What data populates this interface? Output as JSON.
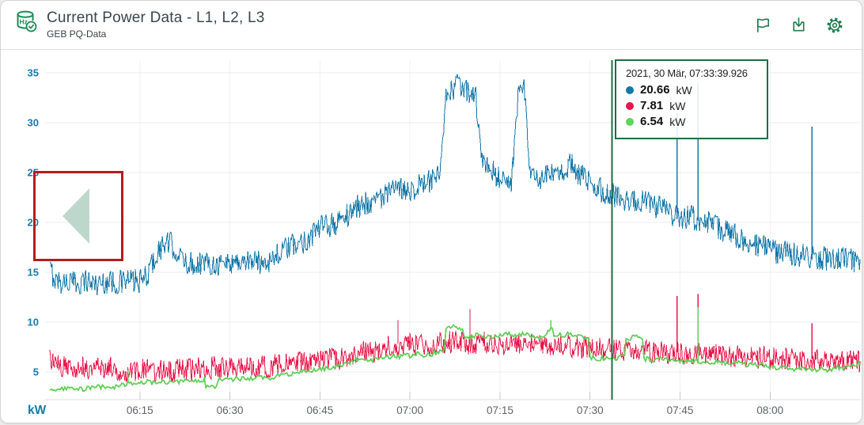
{
  "header": {
    "title": "Current Power Data - L1, L2, L3",
    "subtitle": "GEB PQ-Data",
    "icon_color": "#1e8a55",
    "action_icon_color": "#1e7e4f",
    "actions": [
      "flag",
      "download",
      "settings"
    ]
  },
  "tooltip": {
    "timestamp": "2021, 30 Mär, 07:33:39.926",
    "border_color": "#1b6e43",
    "rows": [
      {
        "series": "L1",
        "value": "20.66",
        "unit": "kW",
        "dot_color": "#1478a8"
      },
      {
        "series": "L2",
        "value": "7.81",
        "unit": "kW",
        "dot_color": "#e8174b"
      },
      {
        "series": "L3",
        "value": "6.54",
        "unit": "kW",
        "dot_color": "#5cd65c"
      }
    ]
  },
  "axes": {
    "y_unit_label": "kW",
    "y_label_color": "#1779ab",
    "x_label_color": "#5f6368"
  },
  "overlay": {
    "selection_box": {
      "border_color": "#b01e1e",
      "arrow_direction": "left",
      "arrow_color": "#b7d3c8"
    }
  },
  "chart_data": {
    "type": "line",
    "title": "Current Power Data - L1, L2, L3",
    "unit": "kW",
    "grid": true,
    "x_start_label": "06:00",
    "x_span_minutes": 135,
    "x_ticks": [
      {
        "m": 15,
        "label": "06:15"
      },
      {
        "m": 30,
        "label": "06:30"
      },
      {
        "m": 45,
        "label": "06:45"
      },
      {
        "m": 60,
        "label": "07:00"
      },
      {
        "m": 75,
        "label": "07:15"
      },
      {
        "m": 90,
        "label": "07:30"
      },
      {
        "m": 105,
        "label": "07:45"
      },
      {
        "m": 120,
        "label": "08:00"
      }
    ],
    "y_ticks": [
      5,
      10,
      15,
      20,
      25,
      30,
      35
    ],
    "ylim": [
      2,
      36.5
    ],
    "crosshair": {
      "time": "07:33:39.926",
      "x_minutes": 93.665,
      "color": "#1b6e43"
    },
    "series": [
      {
        "name": "L1",
        "color": "#1478a8",
        "noise": 1.25,
        "samples_per_min": 8,
        "step": false,
        "width": 1,
        "base": [
          15.3,
          14.2,
          14.0,
          14.1,
          13.9,
          14.0,
          14.2,
          14.0,
          13.8,
          14.0,
          14.1,
          13.9,
          14.0,
          14.2,
          14.1,
          14.0,
          14.5,
          15.8,
          17.0,
          17.8,
          17.9,
          17.2,
          16.2,
          15.9,
          15.8,
          16.0,
          15.9,
          16.0,
          15.8,
          15.9,
          16.0,
          16.1,
          16.0,
          16.2,
          16.1,
          16.0,
          16.2,
          16.3,
          16.8,
          17.2,
          17.5,
          17.8,
          18.0,
          18.4,
          19.0,
          19.4,
          19.6,
          19.8,
          20.0,
          20.5,
          21.0,
          21.5,
          21.8,
          22.0,
          22.3,
          22.5,
          22.8,
          23.0,
          23.2,
          23.5,
          23.3,
          23.6,
          23.8,
          24.0,
          24.2,
          24.6,
          32.2,
          33.4,
          33.7,
          33.4,
          33.0,
          32.4,
          26.0,
          25.4,
          25.0,
          24.5,
          24.1,
          24.3,
          33.0,
          33.4,
          24.8,
          24.5,
          24.2,
          24.6,
          25.0,
          24.4,
          25.4,
          26.0,
          25.0,
          24.5,
          23.8,
          23.5,
          23.2,
          22.6,
          22.8,
          22.5,
          22.2,
          22.0,
          22.4,
          22.1,
          21.8,
          21.5,
          21.3,
          21.0,
          20.8,
          20.5,
          20.4,
          20.6,
          20.2,
          20.0,
          19.8,
          19.6,
          19.2,
          19.0,
          18.7,
          18.5,
          18.2,
          18.0,
          17.7,
          17.5,
          17.3,
          17.1,
          17.0,
          16.9,
          16.8,
          16.7,
          16.6,
          16.6,
          16.5,
          16.4,
          16.4,
          16.3,
          16.3,
          16.4,
          16.2,
          16.3
        ],
        "spikes": [
          [
            104.5,
            31.0
          ],
          [
            108,
            34.0
          ],
          [
            127,
            29.6
          ]
        ]
      },
      {
        "name": "L2",
        "color": "#e8174b",
        "noise": 1.15,
        "samples_per_min": 8,
        "step": false,
        "width": 1,
        "base": [
          6.3,
          5.6,
          5.5,
          5.4,
          5.5,
          5.6,
          5.4,
          5.3,
          5.5,
          5.4,
          5.5,
          5.2,
          5.1,
          5.2,
          5.0,
          5.1,
          5.2,
          5.1,
          5.0,
          5.2,
          5.1,
          5.2,
          5.3,
          5.2,
          5.1,
          5.4,
          5.3,
          5.4,
          5.5,
          5.4,
          5.5,
          5.4,
          5.6,
          5.5,
          5.4,
          5.6,
          5.5,
          5.6,
          5.7,
          5.6,
          5.8,
          5.9,
          6.0,
          5.9,
          6.1,
          6.0,
          6.2,
          6.3,
          6.2,
          6.4,
          6.6,
          6.8,
          7.0,
          7.2,
          7.0,
          7.3,
          7.5,
          7.6,
          7.8,
          7.7,
          7.9,
          7.8,
          7.6,
          7.5,
          7.7,
          7.8,
          8.0,
          7.9,
          8.1,
          8.0,
          7.8,
          7.9,
          8.0,
          7.8,
          7.9,
          7.7,
          7.8,
          7.9,
          8.0,
          7.8,
          7.9,
          7.7,
          7.8,
          7.6,
          7.7,
          7.8,
          7.6,
          7.5,
          7.6,
          7.4,
          7.5,
          7.4,
          7.3,
          7.5,
          7.3,
          7.2,
          7.3,
          7.2,
          7.1,
          7.2,
          7.0,
          7.1,
          7.0,
          6.9,
          7.0,
          6.9,
          6.8,
          6.9,
          6.8,
          6.7,
          6.8,
          6.7,
          6.6,
          6.7,
          6.6,
          6.5,
          6.6,
          6.5,
          6.4,
          6.5,
          6.4,
          6.3,
          6.4,
          6.3,
          6.2,
          6.3,
          6.2,
          6.3,
          6.2,
          6.1,
          6.2,
          6.1,
          6.2,
          6.1,
          6.0,
          6.1
        ],
        "spikes": [
          [
            58,
            10.2
          ],
          [
            70,
            11.3
          ],
          [
            104.5,
            12.6
          ],
          [
            108,
            12.8
          ],
          [
            127,
            9.9
          ]
        ]
      },
      {
        "name": "L3",
        "color": "#62cf58",
        "noise": 0.22,
        "samples_per_min": 4,
        "step": true,
        "width": 1.8,
        "base": [
          3.2,
          3.2,
          3.3,
          3.3,
          3.2,
          3.3,
          3.4,
          3.4,
          3.5,
          3.4,
          3.5,
          3.6,
          3.7,
          3.9,
          3.9,
          4.0,
          4.0,
          3.9,
          4.0,
          4.0,
          4.1,
          4.0,
          4.1,
          4.0,
          4.1,
          4.2,
          3.6,
          3.5,
          4.2,
          4.3,
          4.2,
          4.3,
          4.4,
          4.3,
          4.4,
          4.5,
          4.4,
          4.5,
          4.6,
          4.7,
          4.8,
          4.9,
          5.0,
          5.1,
          5.2,
          5.3,
          5.4,
          5.5,
          5.7,
          5.8,
          6.0,
          6.2,
          6.3,
          6.2,
          6.4,
          6.3,
          6.5,
          6.6,
          6.5,
          6.7,
          6.6,
          6.8,
          6.7,
          6.8,
          7.0,
          7.2,
          9.5,
          9.7,
          9.4,
          8.6,
          8.5,
          8.7,
          8.6,
          8.5,
          8.6,
          8.7,
          8.8,
          8.7,
          8.8,
          8.9,
          8.6,
          8.5,
          8.7,
          9.3,
          8.6,
          8.7,
          8.8,
          8.6,
          8.7,
          8.5,
          6.4,
          6.3,
          6.4,
          6.5,
          6.4,
          6.5,
          8.4,
          8.5,
          8.3,
          6.3,
          6.2,
          6.3,
          6.2,
          6.1,
          6.2,
          6.1,
          6.2,
          6.1,
          6.0,
          6.0,
          5.9,
          6.0,
          5.9,
          5.8,
          5.9,
          5.8,
          5.7,
          5.8,
          5.7,
          5.6,
          5.5,
          5.4,
          5.5,
          5.4,
          5.3,
          5.4,
          5.3,
          5.2,
          5.3,
          5.2,
          5.3,
          5.5,
          5.4,
          5.6,
          5.8,
          5.7
        ],
        "spikes": [
          [
            13,
            5.2
          ],
          [
            83.5,
            10.2
          ],
          [
            108,
            11.5
          ]
        ]
      }
    ]
  }
}
